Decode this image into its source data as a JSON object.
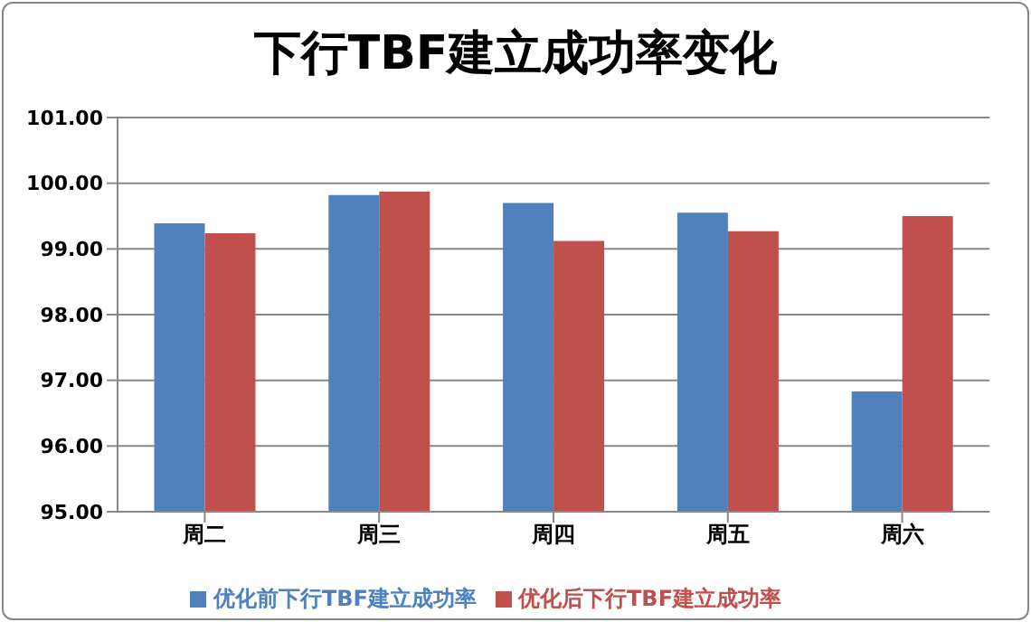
{
  "chart_data": {
    "type": "bar",
    "title": "下行TBF建立成功率变化",
    "categories": [
      "周二",
      "周三",
      "周四",
      "周五",
      "周六"
    ],
    "series": [
      {
        "name": "优化前下行TBF建立成功率",
        "color": "#4f81bd",
        "values": [
          99.39,
          99.82,
          99.7,
          99.55,
          96.83
        ]
      },
      {
        "name": "优化后下行TBF建立成功率",
        "color": "#c0504d",
        "values": [
          99.24,
          99.87,
          99.12,
          99.27,
          99.5
        ]
      }
    ],
    "ylim": [
      95,
      101
    ],
    "yticks": [
      {
        "value": 95,
        "label": "95.00"
      },
      {
        "value": 96,
        "label": "96.00"
      },
      {
        "value": 97,
        "label": "97.00"
      },
      {
        "value": 98,
        "label": "98.00"
      },
      {
        "value": 99,
        "label": "99.00"
      },
      {
        "value": 100,
        "label": "100.00"
      },
      {
        "value": 101,
        "label": "101.00"
      }
    ],
    "grid": "y",
    "legend": "bottom"
  }
}
